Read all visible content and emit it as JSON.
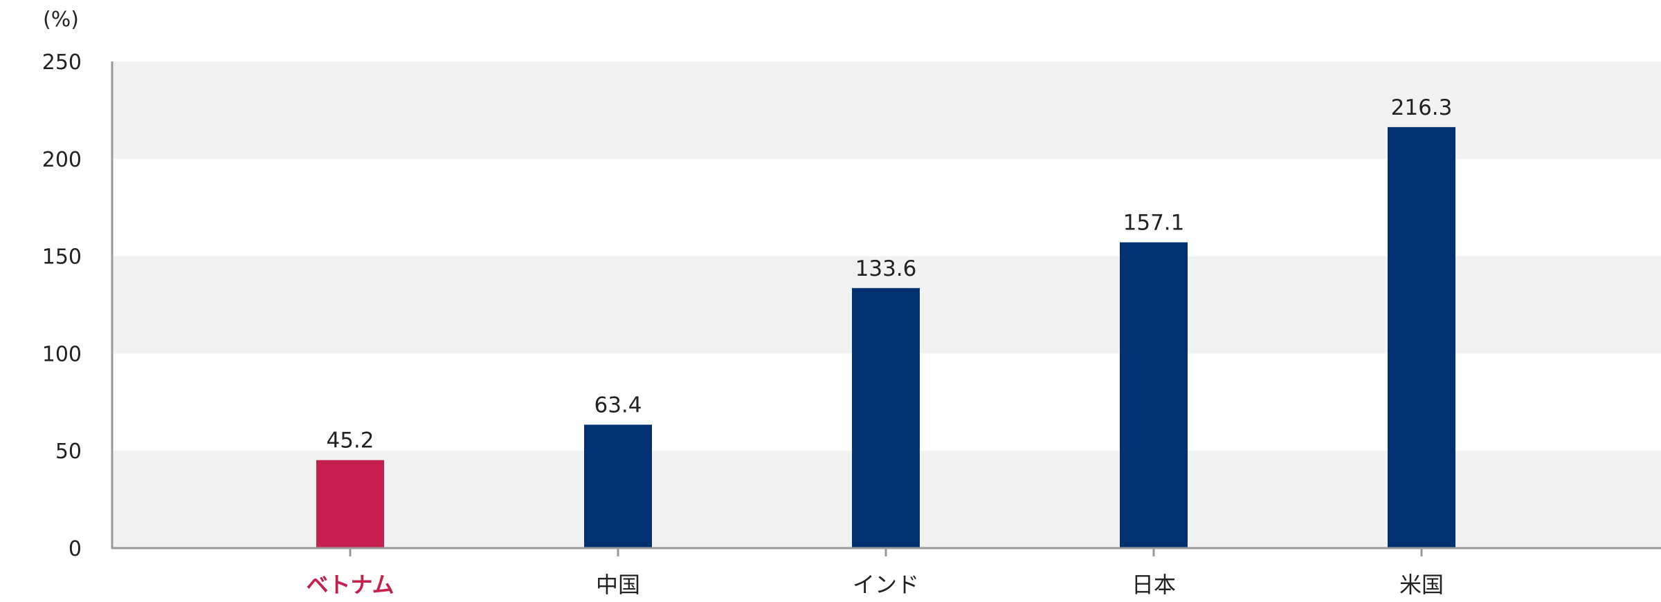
{
  "chart_data": {
    "type": "bar",
    "unit_label": "(%)",
    "categories": [
      "ベトナム",
      "中国",
      "インド",
      "日本",
      "米国"
    ],
    "values": [
      45.2,
      63.4,
      133.6,
      157.1,
      216.3
    ],
    "data_labels": [
      "45.2",
      "63.4",
      "133.6",
      "157.1",
      "216.3"
    ],
    "highlight_index": 0,
    "yticks": [
      0,
      50,
      100,
      150,
      200,
      250
    ],
    "ylim": [
      0,
      250
    ],
    "grid": "alternating-bands",
    "colors": {
      "bar": "#003070",
      "highlight": "#c41f4f",
      "band": "#f2f2f2",
      "axis": "#999999"
    }
  }
}
